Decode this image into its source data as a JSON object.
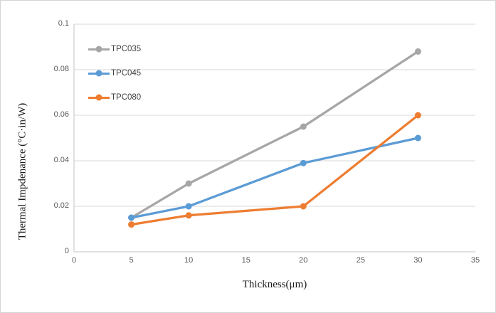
{
  "chart_data": {
    "type": "line",
    "xlabel": "Thickness(μm)",
    "ylabel": "Thermal Impdenance (°C·in/W)",
    "x": [
      5,
      10,
      20,
      30
    ],
    "series": [
      {
        "name": "TPC035",
        "color": "#A6A6A6",
        "values": [
          0.015,
          0.03,
          0.055,
          0.088
        ]
      },
      {
        "name": "TPC045",
        "color": "#5B9BD5",
        "values": [
          0.015,
          0.02,
          0.039,
          0.05
        ]
      },
      {
        "name": "TPC080",
        "color": "#ED7D31",
        "values": [
          0.012,
          0.016,
          0.02,
          0.06
        ]
      }
    ],
    "xlim": [
      0,
      35
    ],
    "ylim": [
      0,
      0.1
    ],
    "x_tick_values": [
      0,
      5,
      10,
      15,
      20,
      25,
      30,
      35
    ],
    "x_tick_labels": [
      "0",
      "5",
      "10",
      "15",
      "20",
      "25",
      "30",
      "35"
    ],
    "y_tick_values": [
      0,
      0.02,
      0.04,
      0.06,
      0.08,
      0.1
    ],
    "y_tick_labels": [
      "0",
      "0.02",
      "0.04",
      "0.06",
      "0.08",
      "0.1"
    ],
    "grid": "horizontal-only",
    "legend_position": "top-left-inside",
    "marker": "circle"
  },
  "colors": {
    "background": "#FFFFFF",
    "frame_border": "#D4D4D4",
    "gridline": "#D9D9D9",
    "axis_line": "#C3C3C3",
    "tick_text": "#595959",
    "legend_text": "#404040",
    "axis_title_text": "#1A1A1A"
  }
}
